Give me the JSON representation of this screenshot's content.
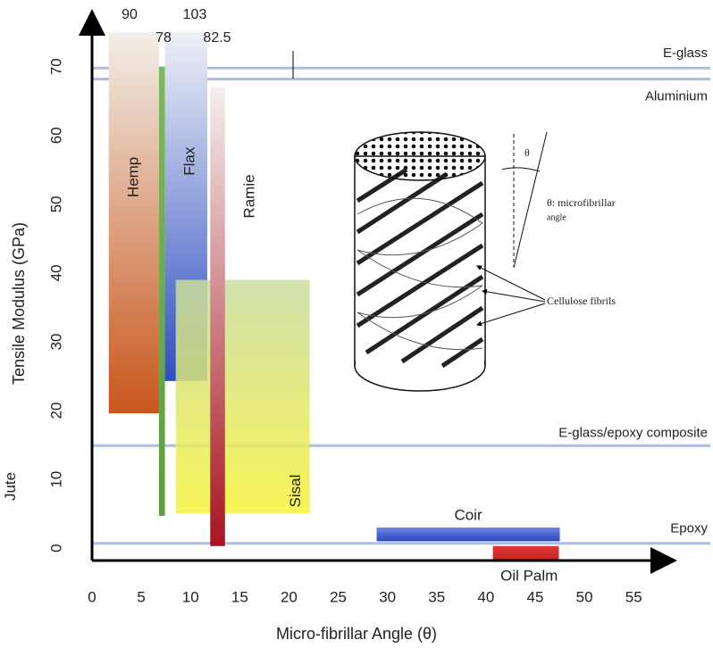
{
  "chart_data": {
    "type": "range",
    "xlabel": "Micro-fibrillar Angle (θ)",
    "ylabel": "Tensile Modulus (GPa)",
    "xlim": [
      0,
      58.7
    ],
    "ylim": [
      -1.8,
      75.8
    ],
    "xticks": [
      0,
      5,
      10,
      15,
      20,
      25,
      30,
      35,
      40,
      45,
      50,
      55
    ],
    "yticks": [
      0,
      10,
      20,
      30,
      40,
      50,
      60,
      70
    ],
    "fibers": [
      {
        "name": "Hemp",
        "x": [
          1.7,
          6.8
        ],
        "y": [
          19.6,
          75
        ],
        "max": 90,
        "colors": [
          "#f2eee8",
          "#c8561c"
        ]
      },
      {
        "name": "Jute",
        "x": [
          6.8,
          7.4
        ],
        "y": [
          4.7,
          70
        ],
        "max": 78,
        "colors": [
          "#7cb85c",
          "#5e9e3c"
        ]
      },
      {
        "name": "Flax",
        "x": [
          7.4,
          11.7
        ],
        "y": [
          24.3,
          75
        ],
        "max": 103,
        "colors": [
          "#eef0f6",
          "#2f4fc0"
        ]
      },
      {
        "name": "Sisal",
        "x": [
          8.5,
          22.1
        ],
        "y": [
          5.1,
          39
        ],
        "colors": [
          "#c8dca0",
          "#f6f23a"
        ]
      },
      {
        "name": "Ramie",
        "x": [
          12.0,
          13.5
        ],
        "y": [
          0.3,
          67
        ],
        "max": 82.5,
        "colors": [
          "#f4eeee",
          "#a81420"
        ]
      },
      {
        "name": "Coir",
        "x": [
          28.9,
          47.5
        ],
        "y": [
          1.0,
          3.0
        ],
        "colors": [
          "#6f86e0",
          "#2848c0"
        ]
      },
      {
        "name": "Oil Palm",
        "x": [
          40.7,
          47.4
        ],
        "y": [
          -1.8,
          0.3
        ],
        "colors": [
          "#e03838",
          "#c82020"
        ]
      }
    ],
    "reference_lines": [
      {
        "name": "E-glass",
        "value": 69.8
      },
      {
        "name": "Aluminium",
        "value": 68.2
      },
      {
        "name": "E-glass/epoxy composite",
        "value": 14.9
      },
      {
        "name": "Epoxy",
        "value": 0.7
      }
    ],
    "line_color": "#a9bde6",
    "inset": {
      "theta": "θ",
      "angle_label": [
        "θ: microfibrillar",
        "angle"
      ],
      "fibril_label": "Cellulose fibrils"
    }
  }
}
